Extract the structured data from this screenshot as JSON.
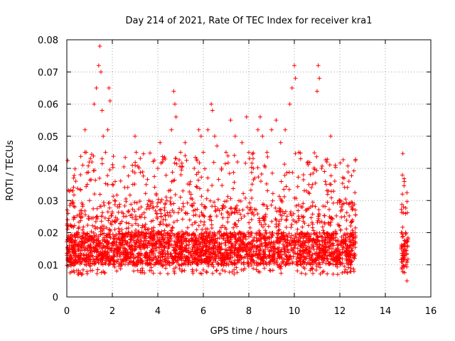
{
  "chart_data": {
    "type": "scatter",
    "title": "Day 214 of 2021, Rate Of TEC Index for receiver kra1",
    "xlabel": "GPS time / hours",
    "ylabel": "ROTI / TECUs",
    "xlim": [
      0,
      16
    ],
    "ylim": [
      0,
      0.08
    ],
    "xticks": [
      "0",
      "2",
      "4",
      "6",
      "8",
      "10",
      "12",
      "14",
      "16"
    ],
    "yticks": [
      "0",
      "0.01",
      "0.02",
      "0.03",
      "0.04",
      "0.05",
      "0.06",
      "0.07",
      "0.08"
    ],
    "grid": true,
    "marker": "plus",
    "color": "#ff0000",
    "series": [
      {
        "name": "ROTI",
        "description": "dense continuous coverage 0 to 12.7 h, mostly 0.007-0.03 TECU with spikes; isolated cluster 14.7-15.0 h",
        "points": [
          [
            0.05,
            0.015
          ],
          [
            0.1,
            0.012
          ],
          [
            0.15,
            0.018
          ],
          [
            0.2,
            0.022
          ],
          [
            0.25,
            0.033
          ],
          [
            0.3,
            0.037
          ],
          [
            0.35,
            0.028
          ],
          [
            0.4,
            0.016
          ],
          [
            0.5,
            0.02
          ],
          [
            0.6,
            0.038
          ],
          [
            0.7,
            0.041
          ],
          [
            0.8,
            0.052
          ],
          [
            0.85,
            0.045
          ],
          [
            0.9,
            0.035
          ],
          [
            1.0,
            0.03
          ],
          [
            1.1,
            0.042
          ],
          [
            1.2,
            0.06
          ],
          [
            1.3,
            0.065
          ],
          [
            1.4,
            0.072
          ],
          [
            1.45,
            0.078
          ],
          [
            1.5,
            0.07
          ],
          [
            1.55,
            0.058
          ],
          [
            1.6,
            0.05
          ],
          [
            1.7,
            0.045
          ],
          [
            1.8,
            0.052
          ],
          [
            1.85,
            0.065
          ],
          [
            1.9,
            0.061
          ],
          [
            2.0,
            0.035
          ],
          [
            2.1,
            0.03
          ],
          [
            2.3,
            0.028
          ],
          [
            2.5,
            0.025
          ],
          [
            2.7,
            0.02
          ],
          [
            2.9,
            0.035
          ],
          [
            3.0,
            0.05
          ],
          [
            3.05,
            0.045
          ],
          [
            3.2,
            0.025
          ],
          [
            3.4,
            0.022
          ],
          [
            3.6,
            0.03
          ],
          [
            3.8,
            0.028
          ],
          [
            4.0,
            0.04
          ],
          [
            4.1,
            0.048
          ],
          [
            4.2,
            0.042
          ],
          [
            4.4,
            0.03
          ],
          [
            4.6,
            0.052
          ],
          [
            4.7,
            0.064
          ],
          [
            4.75,
            0.06
          ],
          [
            4.8,
            0.056
          ],
          [
            5.0,
            0.045
          ],
          [
            5.2,
            0.048
          ],
          [
            5.4,
            0.035
          ],
          [
            5.6,
            0.04
          ],
          [
            5.8,
            0.052
          ],
          [
            5.9,
            0.05
          ],
          [
            6.0,
            0.045
          ],
          [
            6.2,
            0.052
          ],
          [
            6.35,
            0.06
          ],
          [
            6.4,
            0.058
          ],
          [
            6.5,
            0.05
          ],
          [
            6.6,
            0.047
          ],
          [
            6.8,
            0.04
          ],
          [
            7.0,
            0.045
          ],
          [
            7.2,
            0.055
          ],
          [
            7.4,
            0.05
          ],
          [
            7.5,
            0.042
          ],
          [
            7.7,
            0.048
          ],
          [
            7.9,
            0.056
          ],
          [
            8.0,
            0.045
          ],
          [
            8.2,
            0.04
          ],
          [
            8.4,
            0.052
          ],
          [
            8.5,
            0.056
          ],
          [
            8.6,
            0.05
          ],
          [
            8.8,
            0.045
          ],
          [
            9.0,
            0.052
          ],
          [
            9.2,
            0.055
          ],
          [
            9.4,
            0.048
          ],
          [
            9.6,
            0.052
          ],
          [
            9.8,
            0.06
          ],
          [
            9.9,
            0.065
          ],
          [
            10.0,
            0.072
          ],
          [
            10.05,
            0.068
          ],
          [
            10.2,
            0.045
          ],
          [
            10.4,
            0.038
          ],
          [
            10.6,
            0.042
          ],
          [
            10.8,
            0.035
          ],
          [
            11.0,
            0.064
          ],
          [
            11.05,
            0.072
          ],
          [
            11.1,
            0.068
          ],
          [
            11.2,
            0.04
          ],
          [
            11.4,
            0.035
          ],
          [
            11.6,
            0.05
          ],
          [
            11.8,
            0.041
          ],
          [
            12.0,
            0.03
          ],
          [
            12.2,
            0.025
          ],
          [
            12.4,
            0.036
          ],
          [
            12.5,
            0.028
          ],
          [
            12.6,
            0.02
          ],
          [
            12.65,
            0.012
          ],
          [
            14.7,
            0.02
          ],
          [
            14.75,
            0.032
          ],
          [
            14.8,
            0.028
          ],
          [
            14.85,
            0.015
          ],
          [
            14.9,
            0.01
          ],
          [
            14.95,
            0.005
          ],
          [
            15.0,
            0.018
          ]
        ],
        "band": {
          "segments": [
            [
              0.0,
              12.7
            ],
            [
              14.7,
              15.0
            ]
          ],
          "typical_range": [
            0.007,
            0.03
          ],
          "dense_core": [
            0.01,
            0.02
          ]
        }
      }
    ]
  }
}
